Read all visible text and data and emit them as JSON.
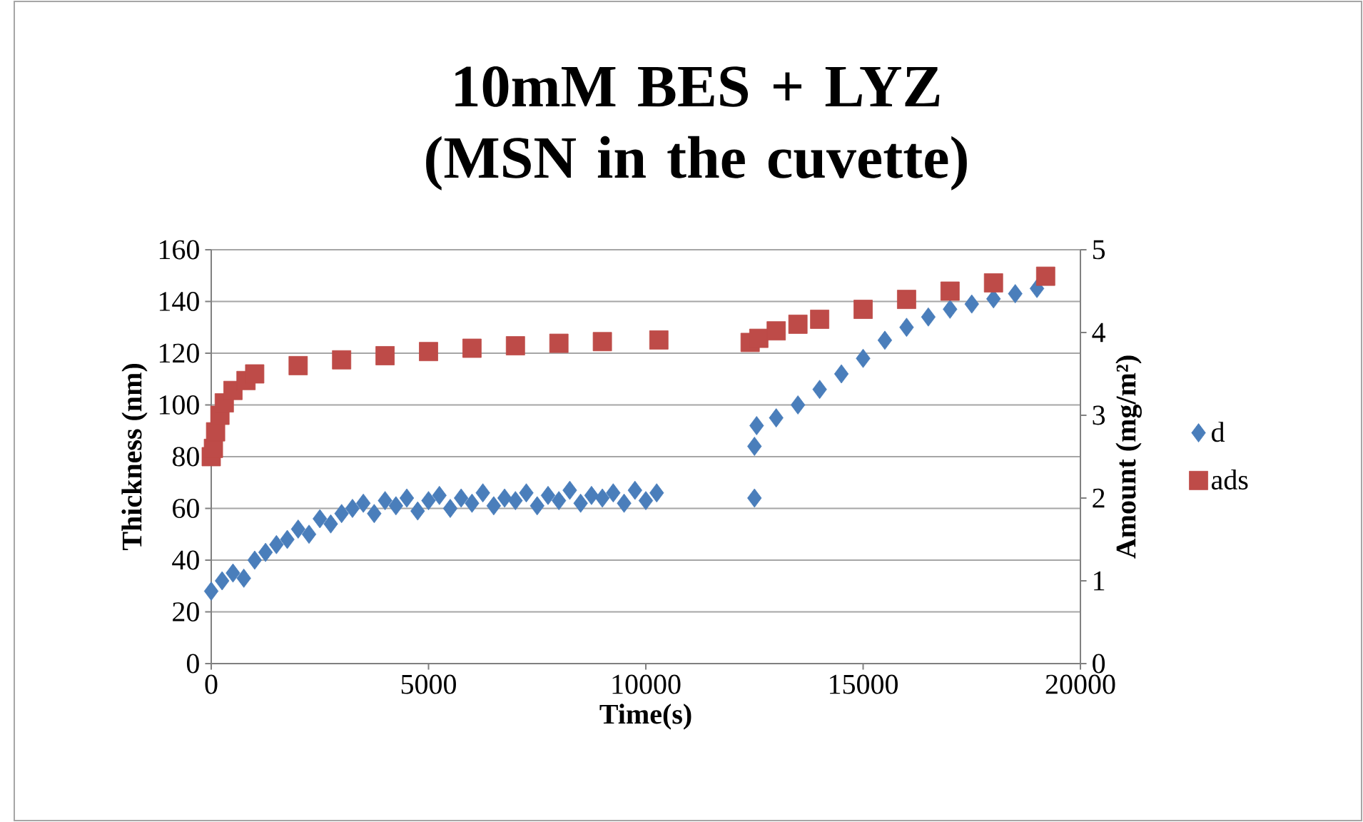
{
  "chart_data": {
    "type": "scatter",
    "title": "10mM BES + LYZ (MSN in the cuvette)",
    "xlabel": "Time(s)",
    "ylabel": "Thickness (nm)",
    "y2label": "Amount (mg/m²)",
    "xlim": [
      0,
      20000
    ],
    "xticks": [
      0,
      5000,
      10000,
      15000,
      20000
    ],
    "ylim": [
      0,
      160
    ],
    "yticks": [
      0,
      20,
      40,
      60,
      80,
      100,
      120,
      140,
      160
    ],
    "y2lim": [
      0,
      5
    ],
    "y2ticks": [
      0,
      1,
      2,
      3,
      4,
      5
    ],
    "grid": "y",
    "legend": "right",
    "series": [
      {
        "name": "d",
        "color": "#4a7ebb",
        "marker": "diamond",
        "x": [
          0,
          250,
          500,
          750,
          1000,
          1250,
          1500,
          1750,
          2000,
          2250,
          2500,
          2750,
          3000,
          3250,
          3500,
          3750,
          4000,
          4250,
          4500,
          4750,
          5000,
          5250,
          5500,
          5750,
          6000,
          6250,
          6500,
          6750,
          7000,
          7250,
          7500,
          7750,
          8000,
          8250,
          8500,
          8750,
          9000,
          9250,
          9500,
          9750,
          10000,
          10250,
          12500,
          12500,
          12550,
          13000,
          13500,
          14000,
          14500,
          15000,
          15500,
          16000,
          16500,
          17000,
          17500,
          18000,
          18500,
          19000
        ],
        "values": [
          28,
          32,
          35,
          33,
          40,
          43,
          46,
          48,
          52,
          50,
          56,
          54,
          58,
          60,
          62,
          58,
          63,
          61,
          64,
          59,
          63,
          65,
          60,
          64,
          62,
          66,
          61,
          64,
          63,
          66,
          61,
          65,
          63,
          67,
          62,
          65,
          64,
          66,
          62,
          67,
          63,
          66,
          64,
          84,
          92,
          95,
          100,
          106,
          112,
          118,
          125,
          130,
          134,
          137,
          139,
          141,
          143,
          145
        ]
      },
      {
        "name": "ads",
        "color": "#be4b48",
        "marker": "square",
        "axis": "y2",
        "x": [
          0,
          50,
          100,
          200,
          300,
          500,
          800,
          1000,
          2000,
          3000,
          4000,
          5000,
          6000,
          7000,
          8000,
          9000,
          10300,
          12400,
          12600,
          13000,
          13500,
          14000,
          15000,
          16000,
          17000,
          18000,
          19200
        ],
        "values": [
          2.5,
          2.6,
          2.8,
          3.0,
          3.15,
          3.3,
          3.42,
          3.5,
          3.6,
          3.67,
          3.72,
          3.77,
          3.81,
          3.84,
          3.87,
          3.89,
          3.91,
          3.88,
          3.93,
          4.02,
          4.1,
          4.16,
          4.28,
          4.4,
          4.5,
          4.6,
          4.68
        ]
      }
    ]
  }
}
